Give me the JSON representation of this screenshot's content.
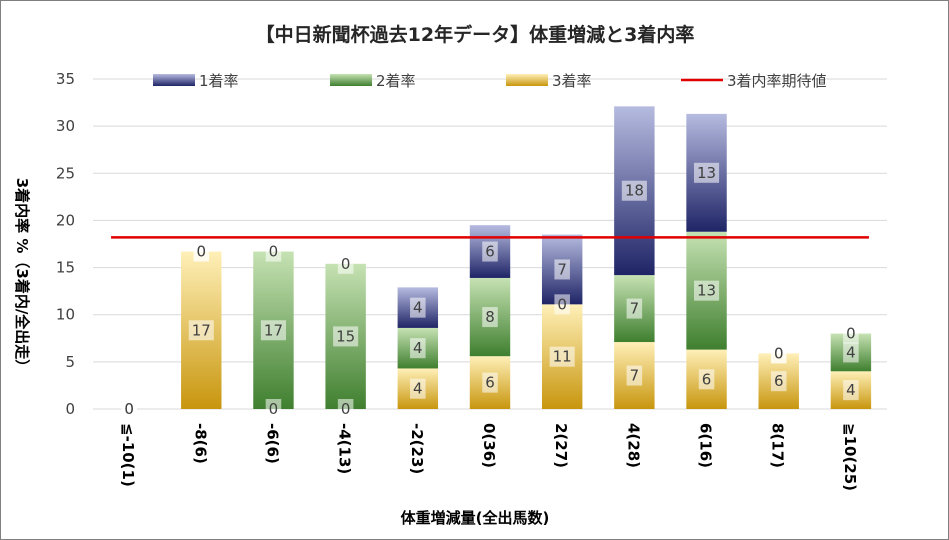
{
  "chart_data": {
    "type": "bar",
    "stacked": true,
    "title": "【中日新聞杯過去12年データ】体重増減と3着内率",
    "xlabel": "体重増減量(全出馬数)",
    "ylabel": "3着内率 %（3着内/全出走）",
    "ylim": [
      0,
      35
    ],
    "yticks": [
      0,
      5,
      10,
      15,
      20,
      25,
      30,
      35
    ],
    "categories": [
      "≦-10(1)",
      "-8(6)",
      "-6(6)",
      "-4(13)",
      "-2(23)",
      "0(36)",
      "2(27)",
      "4(28)",
      "6(16)",
      "8(17)",
      "≧10(25)"
    ],
    "series": [
      {
        "name": "3着率",
        "values": [
          0,
          16.7,
          0,
          0,
          4.3,
          5.6,
          11.1,
          7.1,
          6.3,
          5.9,
          4.0
        ],
        "labels": [
          "0",
          "17",
          "0",
          "0",
          "4",
          "6",
          "11",
          "7",
          "6",
          "6",
          "4"
        ],
        "color": "#d4a017"
      },
      {
        "name": "2着率",
        "values": [
          0,
          0,
          16.7,
          15.4,
          4.3,
          8.3,
          0,
          7.1,
          12.5,
          0,
          4.0
        ],
        "labels": [
          "0",
          "0",
          "17",
          "15",
          "4",
          "8",
          "0",
          "7",
          "13",
          "0",
          "4"
        ],
        "color": "#4e8f3a"
      },
      {
        "name": "1着率",
        "values": [
          0,
          0,
          0,
          0,
          4.3,
          5.6,
          7.4,
          17.9,
          12.5,
          0,
          0
        ],
        "labels": [
          "0",
          "0",
          "0",
          "0",
          "4",
          "6",
          "7",
          "18",
          "13",
          "0",
          "0"
        ],
        "color": "#2e3580"
      }
    ],
    "reference_line": {
      "name": "3着内率期待値",
      "value": 18.2,
      "color": "#e00000"
    },
    "legend": [
      {
        "name": "1着率",
        "kind": "box",
        "color": "#2e3580"
      },
      {
        "name": "2着率",
        "kind": "box",
        "color": "#4e8f3a"
      },
      {
        "name": "3着率",
        "kind": "box",
        "color": "#d4a017"
      },
      {
        "name": "3着内率期待値",
        "kind": "line",
        "color": "#e00000"
      }
    ],
    "legend_position": "top",
    "grid": true
  }
}
